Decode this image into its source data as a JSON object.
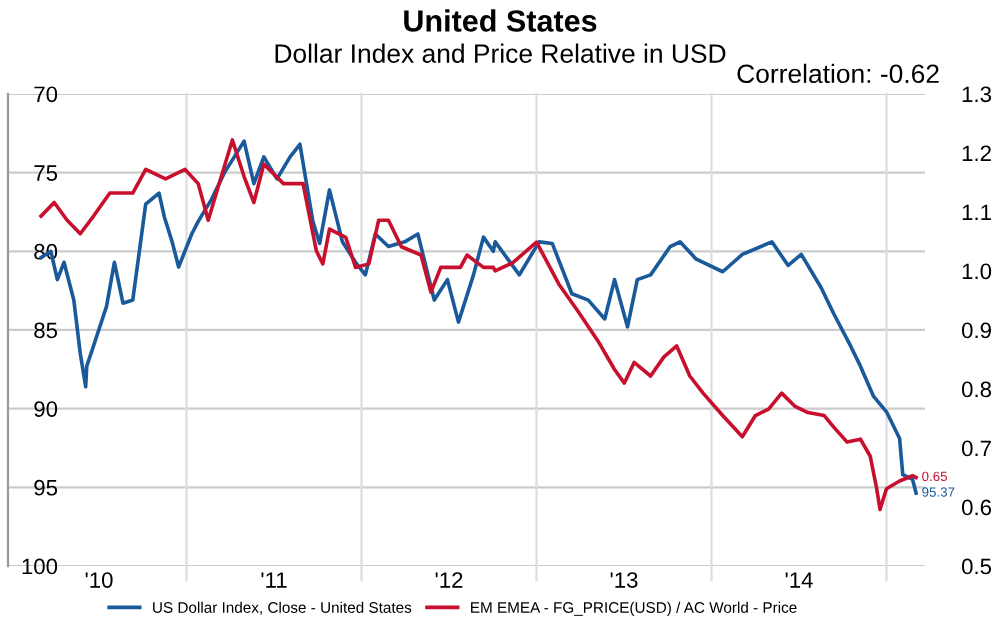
{
  "chart_data": {
    "type": "line",
    "title": "United States",
    "subtitle": "Dollar Index and Price Relative in USD",
    "annotations": [
      "Correlation: -0.62"
    ],
    "xlim": [
      2009.48,
      2014.72
    ],
    "xticks": [
      {
        "value": 2010,
        "label": "'10"
      },
      {
        "value": 2010.5,
        "label": null
      },
      {
        "value": 2011,
        "label": "'11"
      },
      {
        "value": 2011.5,
        "label": null
      },
      {
        "value": 2012,
        "label": "'12"
      },
      {
        "value": 2012.5,
        "label": null
      },
      {
        "value": 2013,
        "label": "'13"
      },
      {
        "value": 2013.5,
        "label": null
      },
      {
        "value": 2014,
        "label": "'14"
      },
      {
        "value": 2014.5,
        "label": null
      }
    ],
    "ylim": [
      100,
      70
    ],
    "yticks": [
      70,
      75,
      80,
      85,
      90,
      95,
      100
    ],
    "y2lim": [
      0.5,
      1.3
    ],
    "y2ticks": [
      0.5,
      0.6,
      0.7,
      0.8,
      0.9,
      {
        "value": 1.0,
        "label": "1.0"
      },
      1.1,
      1.2,
      1.3
    ],
    "grid": true,
    "legend": "bottom",
    "marker": "none",
    "line_style": "solid",
    "series": [
      {
        "name": "US Dollar Index, Close - United States",
        "color": "#1a5a9a",
        "axis": "y",
        "x": [
          2009.669,
          2009.725,
          2009.762,
          2009.8,
          2009.856,
          2009.893,
          2009.924,
          2009.93,
          2009.969,
          2010.043,
          2010.088,
          2010.137,
          2010.193,
          2010.267,
          2010.343,
          2010.373,
          2010.418,
          2010.455,
          2010.53,
          2010.567,
          2010.643,
          2010.717,
          2010.829,
          2010.885,
          2010.942,
          2011.017,
          2011.092,
          2011.148,
          2011.222,
          2011.261,
          2011.317,
          2011.391,
          2011.466,
          2011.522,
          2011.579,
          2011.654,
          2011.747,
          2011.822,
          2011.916,
          2011.991,
          2012.054,
          2012.14,
          2012.197,
          2012.253,
          2012.264,
          2012.402,
          2012.515,
          2012.59,
          2012.702,
          2012.796,
          2012.89,
          2012.946,
          2013.02,
          2013.076,
          2013.152,
          2013.264,
          2013.32,
          2013.413,
          2013.564,
          2013.676,
          2013.845,
          2013.938,
          2014.013,
          2014.126,
          2014.2,
          2014.294,
          2014.351,
          2014.425,
          2014.5,
          2014.575,
          2014.593,
          2014.649,
          2014.669
        ],
        "values": [
          80.4,
          80.0,
          81.8,
          80.7,
          83.1,
          86.5,
          88.6,
          87.3,
          86.0,
          83.5,
          80.7,
          83.3,
          83.1,
          77.0,
          76.3,
          77.8,
          79.4,
          81.0,
          78.9,
          78.1,
          76.7,
          75.0,
          73.0,
          75.7,
          74.0,
          75.4,
          74.0,
          73.2,
          78.1,
          79.5,
          76.1,
          79.4,
          80.7,
          81.5,
          78.9,
          79.7,
          79.4,
          78.9,
          83.1,
          81.8,
          84.5,
          81.5,
          79.1,
          80.0,
          79.4,
          81.5,
          79.4,
          79.5,
          82.7,
          83.1,
          84.3,
          81.8,
          84.8,
          81.8,
          81.5,
          79.7,
          79.4,
          80.5,
          81.3,
          80.2,
          79.4,
          80.9,
          80.2,
          82.3,
          84.0,
          86.0,
          87.3,
          89.2,
          90.2,
          91.9,
          94.2,
          94.5,
          95.37
        ],
        "value_labels": [
          null,
          null,
          null,
          null,
          null,
          null,
          null,
          null,
          null,
          null,
          null,
          null,
          null,
          null,
          null,
          null,
          null,
          null,
          null,
          null,
          null,
          null,
          null,
          null,
          null,
          null,
          null,
          null,
          null,
          null,
          null,
          null,
          null,
          null,
          null,
          null,
          null,
          null,
          null,
          null,
          null,
          null,
          null,
          null,
          null,
          null,
          null,
          null,
          null,
          null,
          null,
          null,
          null,
          null,
          null,
          null,
          null,
          null,
          null,
          null,
          null,
          null,
          null,
          null,
          null,
          null,
          null,
          null,
          null,
          null,
          null,
          null,
          "95.37"
        ]
      },
      {
        "name": "EM EMEA - FG_PRICE(USD) / AC World - Price",
        "color": "#c8102e",
        "axis": "y2",
        "x": [
          2009.669,
          2009.744,
          2009.818,
          2009.893,
          2009.969,
          2010.062,
          2010.193,
          2010.267,
          2010.38,
          2010.492,
          2010.567,
          2010.624,
          2010.699,
          2010.762,
          2010.829,
          2010.885,
          2010.942,
          2011.054,
          2011.166,
          2011.242,
          2011.279,
          2011.317,
          2011.41,
          2011.466,
          2011.542,
          2011.598,
          2011.654,
          2011.728,
          2011.84,
          2011.897,
          2011.953,
          2012.065,
          2012.103,
          2012.197,
          2012.253,
          2012.264,
          2012.365,
          2012.5,
          2012.627,
          2012.739,
          2012.852,
          2012.946,
          2013.002,
          2013.058,
          2013.152,
          2013.227,
          2013.301,
          2013.376,
          2013.452,
          2013.564,
          2013.676,
          2013.751,
          2013.826,
          2013.901,
          2013.975,
          2014.051,
          2014.144,
          2014.2,
          2014.275,
          2014.351,
          2014.407,
          2014.444,
          2014.463,
          2014.5,
          2014.575,
          2014.649,
          2014.669
        ],
        "values": [
          1.093,
          1.116,
          1.086,
          1.063,
          1.093,
          1.132,
          1.132,
          1.172,
          1.156,
          1.172,
          1.148,
          1.086,
          1.16,
          1.222,
          1.16,
          1.116,
          1.181,
          1.148,
          1.148,
          1.034,
          1.012,
          1.071,
          1.057,
          1.006,
          1.012,
          1.086,
          1.086,
          1.041,
          1.027,
          0.964,
          1.006,
          1.006,
          1.027,
          1.006,
          1.006,
          1.0,
          1.014,
          1.049,
          0.978,
          0.931,
          0.881,
          0.833,
          0.81,
          0.845,
          0.822,
          0.854,
          0.873,
          0.822,
          0.793,
          0.755,
          0.719,
          0.755,
          0.766,
          0.793,
          0.771,
          0.76,
          0.755,
          0.735,
          0.71,
          0.715,
          0.686,
          0.631,
          0.596,
          0.631,
          0.644,
          0.653,
          0.65
        ],
        "value_labels": [
          null,
          null,
          null,
          null,
          null,
          null,
          null,
          null,
          null,
          null,
          null,
          null,
          null,
          null,
          null,
          null,
          null,
          null,
          null,
          null,
          null,
          null,
          null,
          null,
          null,
          null,
          null,
          null,
          null,
          null,
          null,
          null,
          null,
          null,
          null,
          null,
          null,
          null,
          null,
          null,
          null,
          null,
          null,
          null,
          null,
          null,
          null,
          null,
          null,
          null,
          null,
          null,
          null,
          null,
          null,
          null,
          null,
          null,
          null,
          null,
          null,
          null,
          null,
          null,
          null,
          null,
          "0.65"
        ]
      }
    ]
  }
}
